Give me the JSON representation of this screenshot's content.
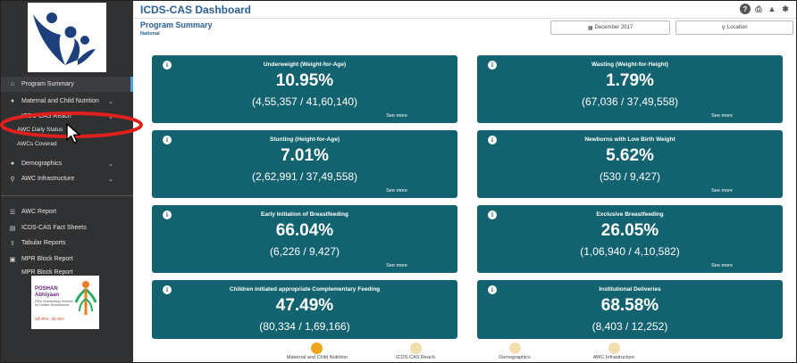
{
  "sidebar": {
    "items": [
      {
        "label": "Program Summary",
        "icon": "home-icon",
        "glyph": "⌂"
      },
      {
        "label": "Maternal and Child Nutrition",
        "icon": "person-icon",
        "glyph": "♦"
      },
      {
        "label": "ICDS-CAS Reach",
        "icon": "reach-icon",
        "glyph": ""
      },
      {
        "label": "Demographics",
        "icon": "group-icon",
        "glyph": "●"
      },
      {
        "label": "AWC Infrastructure",
        "icon": "infra-icon",
        "glyph": "⚲"
      },
      {
        "label": "AWC Report",
        "icon": "list-icon",
        "glyph": "☰"
      },
      {
        "label": "ICDS-CAS Fact Sheets",
        "icon": "sheet-icon",
        "glyph": "▤"
      },
      {
        "label": "Tabular Reports",
        "icon": "upload-icon",
        "glyph": "⇪"
      },
      {
        "label": "MPR Block Report",
        "icon": "report-icon",
        "glyph": "▣"
      },
      {
        "label": "MPR Block Report",
        "icon": "report-icon",
        "glyph": ""
      }
    ],
    "subitems": [
      {
        "label": "AWC Daily Status"
      },
      {
        "label": "AWCs Covered"
      }
    ],
    "chevron": "⌄",
    "poshan": {
      "title_line1": "POSHAN",
      "title_line2": "Abhiyaan",
      "subtitle": "PM's Overarching Scheme for Holistic Nourishment",
      "hindi": "सही पोषण - देश रोशन"
    }
  },
  "header": {
    "title": "ICDS-CAS Dashboard",
    "icons": {
      "help": "?",
      "print": "⎙",
      "warning": "▲",
      "settings": "✱"
    }
  },
  "summary": {
    "title": "Program Summary",
    "subtitle": "National"
  },
  "filters": {
    "date": "December 2017",
    "date_icon": "▦",
    "location": "Location",
    "location_icon": "⚲"
  },
  "cards": [
    {
      "title": "Underweight (Weight-for-Age)",
      "value": "10.95%",
      "ratio": "(4,55,357 / 41,60,140)",
      "more": "See more"
    },
    {
      "title": "Wasting (Weight-for-Height)",
      "value": "1.79%",
      "ratio": "(67,036 / 37,49,558)",
      "more": "See more"
    },
    {
      "title": "Stunting (Height-for-Age)",
      "value": "7.01%",
      "ratio": "(2,62,991 / 37,49,558)",
      "more": "See more"
    },
    {
      "title": "Newborns with Low Birth Weight",
      "value": "5.62%",
      "ratio": "(530 / 9,427)",
      "more": "See more"
    },
    {
      "title": "Early Initiation of Breastfeeding",
      "value": "66.04%",
      "ratio": "(6,226 / 9,427)",
      "more": "See more"
    },
    {
      "title": "Exclusive Breastfeeding",
      "value": "26.05%",
      "ratio": "(1,06,940 / 4,10,582)",
      "more": "See more"
    },
    {
      "title": "Children initiated appropriate Complementary Feeding",
      "value": "47.49%",
      "ratio": "(80,334 / 1,69,166)",
      "more": ""
    },
    {
      "title": "Institutional Deliveries",
      "value": "68.58%",
      "ratio": "(8,403 / 12,252)",
      "more": ""
    }
  ],
  "bottom_nav": [
    {
      "label": "Maternal and Child Nutrition",
      "active": true
    },
    {
      "label": "ICDS-CAS Reach",
      "active": false
    },
    {
      "label": "Demographics",
      "active": false
    },
    {
      "label": "AWC Infrastructure",
      "active": false
    }
  ],
  "colors": {
    "card": "#12636f",
    "sidebar": "#2f3133",
    "title": "#2a5f94",
    "annotation": "#e0201c",
    "nav_active": "#f0a61c",
    "nav_inactive": "#f3deb0"
  }
}
